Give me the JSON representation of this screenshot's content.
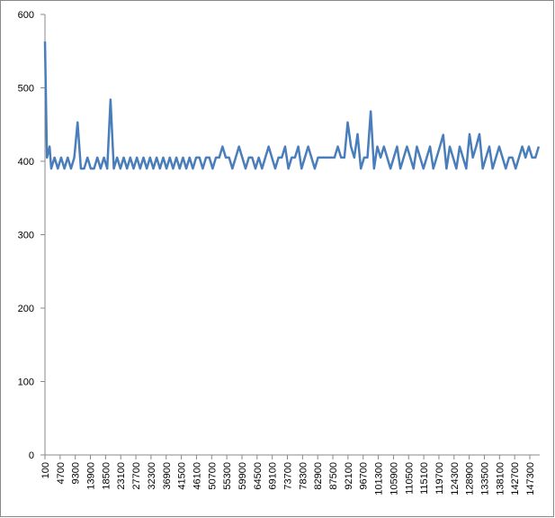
{
  "chart_data": {
    "type": "line",
    "color": "#4a7ebb",
    "xlim": [
      100,
      150300
    ],
    "ylim": [
      0,
      600
    ],
    "yticks": [
      0,
      100,
      200,
      300,
      400,
      500,
      600
    ],
    "xticks": [
      100,
      4700,
      9300,
      13900,
      18500,
      23100,
      27700,
      32300,
      36900,
      41500,
      46100,
      50700,
      55300,
      59900,
      64500,
      69100,
      73700,
      78300,
      82900,
      87500,
      92100,
      96700,
      101300,
      105900,
      110500,
      115100,
      119700,
      124300,
      128900,
      133500,
      138100,
      142700,
      147300
    ],
    "x": [
      100,
      700,
      1500,
      2000,
      3000,
      4000,
      5000,
      6000,
      7000,
      8000,
      9000,
      10000,
      11000,
      12000,
      13000,
      14000,
      15000,
      16000,
      17000,
      18000,
      19000,
      20000,
      21000,
      22000,
      23000,
      24000,
      25000,
      26000,
      27000,
      28000,
      29000,
      30000,
      31000,
      32000,
      33000,
      34000,
      35000,
      36000,
      37000,
      38000,
      39000,
      40000,
      41000,
      42000,
      43000,
      44000,
      45000,
      46000,
      47000,
      48000,
      49000,
      50000,
      51000,
      52000,
      53000,
      54000,
      55000,
      56000,
      57000,
      58000,
      59000,
      60000,
      61000,
      62000,
      63000,
      64000,
      65000,
      66000,
      67000,
      68000,
      69000,
      70000,
      71000,
      72000,
      73000,
      74000,
      75000,
      76000,
      77000,
      78000,
      79000,
      80000,
      81000,
      82000,
      83000,
      84000,
      85000,
      86000,
      87000,
      88000,
      89000,
      90000,
      91000,
      92000,
      93000,
      94000,
      95000,
      96000,
      97000,
      98000,
      99000,
      100000,
      101000,
      102000,
      103000,
      104000,
      105000,
      106000,
      107000,
      108000,
      109000,
      110000,
      111000,
      112000,
      113000,
      114000,
      115000,
      116000,
      117000,
      118000,
      119000,
      120000,
      121000,
      122000,
      123000,
      124000,
      125000,
      126000,
      127000,
      128000,
      129000,
      130000,
      131000,
      132000,
      133000,
      134000,
      135000,
      136000,
      137000,
      138000,
      139000,
      140000,
      141000,
      142000,
      143000,
      144000,
      145000,
      146000,
      147000,
      148000,
      149000,
      150000
    ],
    "values": [
      563,
      405,
      420,
      390,
      405,
      390,
      405,
      390,
      405,
      390,
      405,
      453,
      390,
      390,
      405,
      390,
      390,
      405,
      390,
      405,
      390,
      484,
      390,
      405,
      390,
      405,
      390,
      405,
      390,
      405,
      390,
      405,
      390,
      405,
      390,
      405,
      390,
      405,
      390,
      405,
      390,
      405,
      390,
      405,
      390,
      405,
      390,
      405,
      405,
      390,
      405,
      405,
      390,
      405,
      405,
      420,
      405,
      405,
      390,
      405,
      420,
      405,
      390,
      405,
      405,
      390,
      405,
      390,
      405,
      420,
      405,
      390,
      405,
      405,
      420,
      390,
      405,
      405,
      420,
      390,
      405,
      420,
      405,
      390,
      405,
      405,
      405,
      405,
      405,
      405,
      420,
      405,
      405,
      453,
      420,
      405,
      437,
      390,
      405,
      405,
      468,
      390,
      420,
      405,
      420,
      405,
      390,
      405,
      420,
      390,
      405,
      420,
      405,
      390,
      420,
      405,
      390,
      405,
      420,
      390,
      405,
      420,
      436,
      390,
      420,
      405,
      390,
      420,
      405,
      390,
      437,
      405,
      420,
      437,
      390,
      405,
      420,
      390,
      405,
      420,
      405,
      390,
      405,
      405,
      390,
      405,
      420,
      405,
      420,
      405,
      405,
      420
    ]
  }
}
